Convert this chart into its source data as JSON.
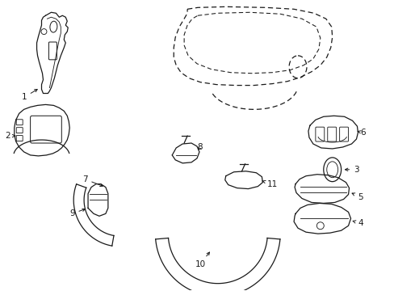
{
  "bg_color": "#ffffff",
  "line_color": "#1a1a1a",
  "lw": 0.9,
  "font_size": 7.5,
  "fig_w": 4.89,
  "fig_h": 3.6,
  "dpi": 100
}
